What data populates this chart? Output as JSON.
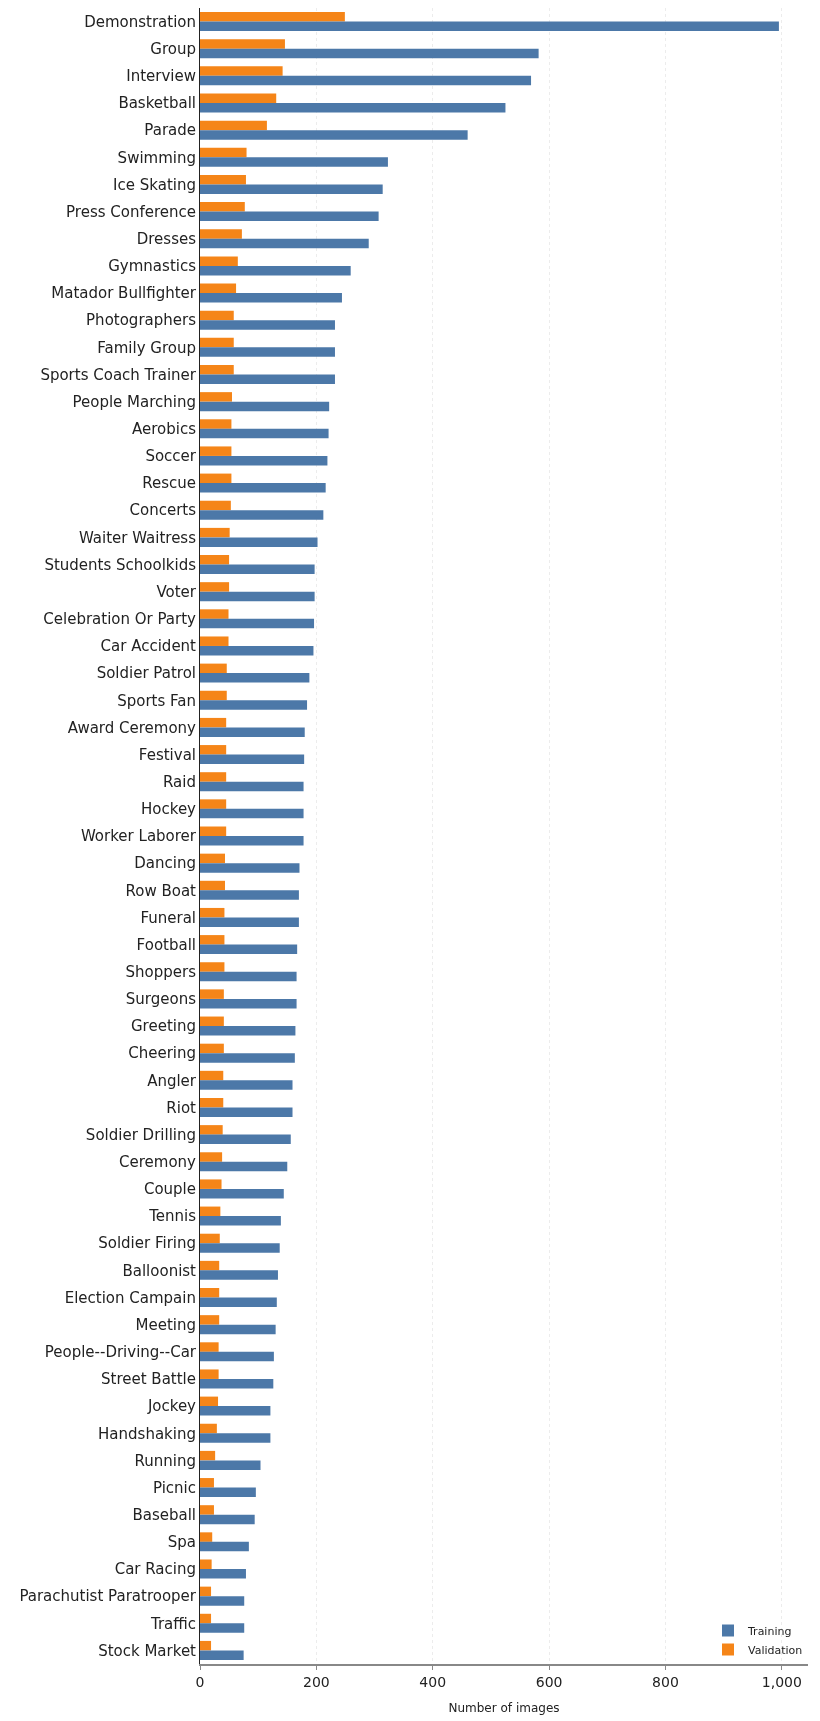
{
  "chart_data": {
    "type": "bar",
    "orientation": "horizontal",
    "xlabel": "Number of images",
    "categories": [
      "Demonstration",
      "Group",
      "Interview",
      "Basketball",
      "Parade",
      "Swimming",
      "Ice Skating",
      "Press Conference",
      "Dresses",
      "Gymnastics",
      "Matador Bullfighter",
      "Photographers",
      "Family Group",
      "Sports Coach Trainer",
      "People Marching",
      "Aerobics",
      "Soccer",
      "Rescue",
      "Concerts",
      "Waiter Waitress",
      "Students Schoolkids",
      "Voter",
      "Celebration Or Party",
      "Car Accident",
      "Soldier Patrol",
      "Sports Fan",
      "Award Ceremony",
      "Festival",
      "Raid",
      "Hockey",
      "Worker Laborer",
      "Dancing",
      "Row Boat",
      "Funeral",
      "Football",
      "Shoppers",
      "Surgeons",
      "Greeting",
      "Cheering",
      "Angler",
      "Riot",
      "Soldier Drilling",
      "Ceremony",
      "Couple",
      "Tennis",
      "Soldier Firing",
      "Balloonist",
      "Election Campain",
      "Meeting",
      "People--Driving--Car",
      "Street Battle",
      "Jockey",
      "Handshaking",
      "Running",
      "Picnic",
      "Baseball",
      "Spa",
      "Car Racing",
      "Parachutist Paratrooper",
      "Traffic",
      "Stock Market"
    ],
    "series": [
      {
        "name": "Training",
        "color": "#4c78a8",
        "values": [
          995,
          582,
          569,
          525,
          460,
          323,
          314,
          307,
          290,
          259,
          244,
          232,
          232,
          232,
          222,
          221,
          219,
          216,
          212,
          202,
          197,
          197,
          196,
          195,
          188,
          184,
          180,
          179,
          178,
          178,
          178,
          171,
          170,
          170,
          167,
          166,
          166,
          164,
          163,
          159,
          159,
          156,
          150,
          144,
          139,
          137,
          134,
          132,
          130,
          127,
          126,
          121,
          121,
          104,
          96,
          94,
          84,
          79,
          76,
          76,
          75
        ]
      },
      {
        "name": "Validation",
        "color": "#f58518",
        "values": [
          249,
          146,
          142,
          131,
          115,
          80,
          79,
          77,
          72,
          65,
          62,
          58,
          58,
          58,
          55,
          54,
          54,
          54,
          53,
          51,
          50,
          50,
          49,
          49,
          46,
          46,
          45,
          45,
          45,
          45,
          45,
          43,
          43,
          42,
          42,
          42,
          41,
          41,
          41,
          40,
          40,
          39,
          38,
          37,
          35,
          34,
          33,
          33,
          33,
          32,
          32,
          31,
          29,
          26,
          24,
          24,
          21,
          20,
          19,
          19,
          19
        ]
      }
    ],
    "xlim": [
      0,
      1045
    ],
    "xticks": [
      0,
      200,
      400,
      600,
      800,
      {
        "value": 1000,
        "label": "1,000"
      }
    ],
    "grid": "x",
    "legend": "bottom right"
  }
}
